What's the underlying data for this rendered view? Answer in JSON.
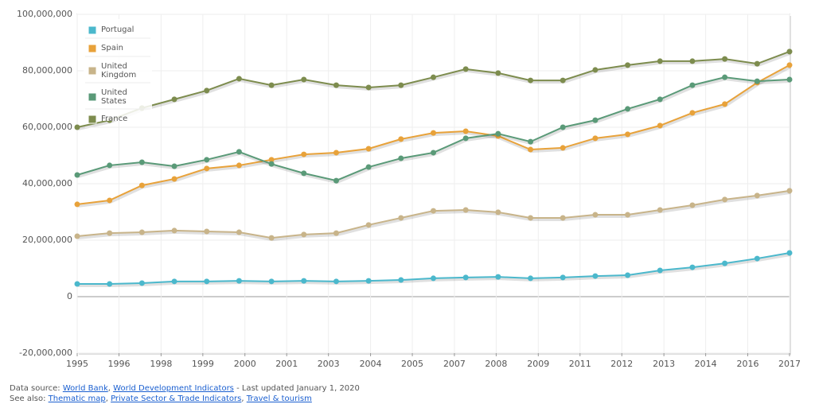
{
  "chart_data": {
    "type": "line",
    "x": [
      1995,
      1996,
      1997,
      1998,
      1999,
      2000,
      2001,
      2002,
      2003,
      2004,
      2005,
      2006,
      2007,
      2008,
      2009,
      2010,
      2011,
      2012,
      2013,
      2014,
      2015,
      2016,
      2017
    ],
    "series": [
      {
        "name": "Portugal",
        "color": "#4bb8cc",
        "values": [
          4500000,
          4500000,
          4800000,
          5400000,
          5400000,
          5600000,
          5400000,
          5600000,
          5400000,
          5600000,
          5900000,
          6500000,
          6800000,
          7000000,
          6500000,
          6800000,
          7300000,
          7600000,
          9300000,
          10400000,
          11800000,
          13500000,
          15500000
        ]
      },
      {
        "name": "Spain",
        "color": "#e8a23a",
        "values": [
          32700000,
          34100000,
          39400000,
          41700000,
          45400000,
          46500000,
          48500000,
          50400000,
          51000000,
          52400000,
          55800000,
          58000000,
          58600000,
          56900000,
          52100000,
          52700000,
          56100000,
          57500000,
          60600000,
          65100000,
          68200000,
          75800000,
          82000000
        ]
      },
      {
        "name": "United Kingdom",
        "color": "#c8b48a",
        "values": [
          21400000,
          22500000,
          22800000,
          23400000,
          23100000,
          22800000,
          20800000,
          22000000,
          22500000,
          25400000,
          27900000,
          30400000,
          30700000,
          29900000,
          27900000,
          27900000,
          29000000,
          29000000,
          30700000,
          32400000,
          34400000,
          35800000,
          37500000
        ]
      },
      {
        "name": "United States",
        "color": "#5a9a78",
        "values": [
          43100000,
          46500000,
          47600000,
          46200000,
          48500000,
          51300000,
          47000000,
          43700000,
          41100000,
          45900000,
          49000000,
          51000000,
          56100000,
          57700000,
          54900000,
          60000000,
          62500000,
          66500000,
          69900000,
          74900000,
          77700000,
          76300000,
          76900000
        ]
      },
      {
        "name": "France",
        "color": "#7d8c4e",
        "values": [
          60000000,
          62500000,
          66800000,
          69900000,
          73000000,
          77200000,
          74900000,
          76900000,
          74900000,
          74100000,
          74900000,
          77700000,
          80600000,
          79200000,
          76600000,
          76600000,
          80300000,
          82000000,
          83400000,
          83400000,
          84200000,
          82500000,
          86800000
        ]
      }
    ],
    "xlim": [
      1995,
      2017
    ],
    "xticks": [
      1995,
      {
        "value": 1996.29,
        "label": "1996"
      },
      {
        "value": 1997.59,
        "label": "1998"
      },
      {
        "value": 1998.88,
        "label": "1999"
      },
      {
        "value": 2000.18,
        "label": "2000"
      },
      {
        "value": 2001.47,
        "label": "2001"
      },
      {
        "value": 2002.76,
        "label": "2003"
      },
      {
        "value": 2004.06,
        "label": "2004"
      },
      {
        "value": 2005.35,
        "label": "2005"
      },
      {
        "value": 2006.65,
        "label": "2007"
      },
      {
        "value": 2007.94,
        "label": "2008"
      },
      {
        "value": 2009.24,
        "label": "2009"
      },
      {
        "value": 2010.53,
        "label": "2011"
      },
      {
        "value": 2011.82,
        "label": "2012"
      },
      {
        "value": 2013.12,
        "label": "2013"
      },
      {
        "value": 2014.41,
        "label": "2014"
      },
      {
        "value": 2015.71,
        "label": "2016"
      },
      2017
    ],
    "ylim": [
      -20000000,
      100000000
    ],
    "yticks": [
      {
        "value": -20000000,
        "label": "-20,000,000"
      },
      0,
      {
        "value": 20000000,
        "label": "20,000,000"
      },
      {
        "value": 40000000,
        "label": "40,000,000"
      },
      {
        "value": 60000000,
        "label": "60,000,000"
      },
      {
        "value": 80000000,
        "label": "80,000,000"
      },
      {
        "value": 100000000,
        "label": "100,000,000"
      }
    ],
    "grid": true,
    "legend": "top-left"
  },
  "footer": {
    "source_label": "Data source:",
    "source_links": [
      "World Bank",
      "World Development Indicators"
    ],
    "updated": "- Last updated January 1, 2020",
    "see_also_label": "See also:",
    "see_also_links": [
      "Thematic map",
      "Private Sector & Trade Indicators",
      "Travel & tourism"
    ],
    "separator": ","
  }
}
